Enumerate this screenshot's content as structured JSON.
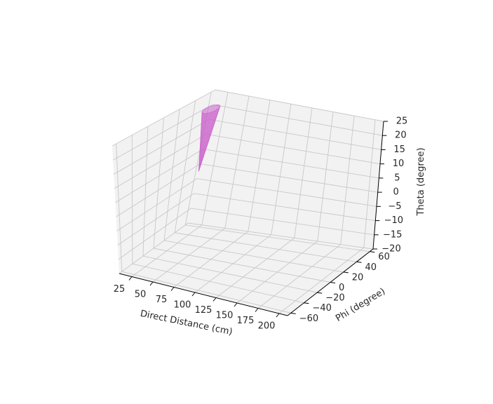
{
  "chart_data": {
    "type": "surface3d",
    "title": "",
    "xlabel": "Direct Distance (cm)",
    "ylabel": "Phi (degree)",
    "zlabel": "Theta (degree)",
    "xlim": [
      10,
      210
    ],
    "ylim": [
      -65,
      65
    ],
    "zlim": [
      -20,
      25
    ],
    "xticks": [
      25,
      50,
      75,
      100,
      125,
      150,
      175,
      200
    ],
    "yticks": [
      -60,
      -40,
      -20,
      0,
      20,
      40,
      60
    ],
    "zticks": [
      -20,
      -15,
      -10,
      -5,
      0,
      5,
      10,
      15,
      20,
      25
    ],
    "xtick_labels": [
      "25",
      "50",
      "75",
      "100",
      "125",
      "150",
      "175",
      "200"
    ],
    "ytick_labels": [
      "−60",
      "−40",
      "−20",
      "0",
      "20",
      "40",
      "60"
    ],
    "ztick_labels": [
      "−20",
      "−15",
      "−10",
      "−5",
      "0",
      "5",
      "10",
      "15",
      "20",
      "25"
    ],
    "grid": true,
    "surface_color": "#cc66cc",
    "pane_color": "#f2f2f2",
    "grid_color": "#c8c8c8",
    "series": [
      {
        "shape": "cone",
        "apex": {
          "x": 12,
          "y": 62,
          "z": -2
        },
        "rim_center": {
          "x": 12,
          "y": 62,
          "z": 19
        },
        "rim_radius_x": 6,
        "rim_radius_y": 10
      }
    ]
  }
}
